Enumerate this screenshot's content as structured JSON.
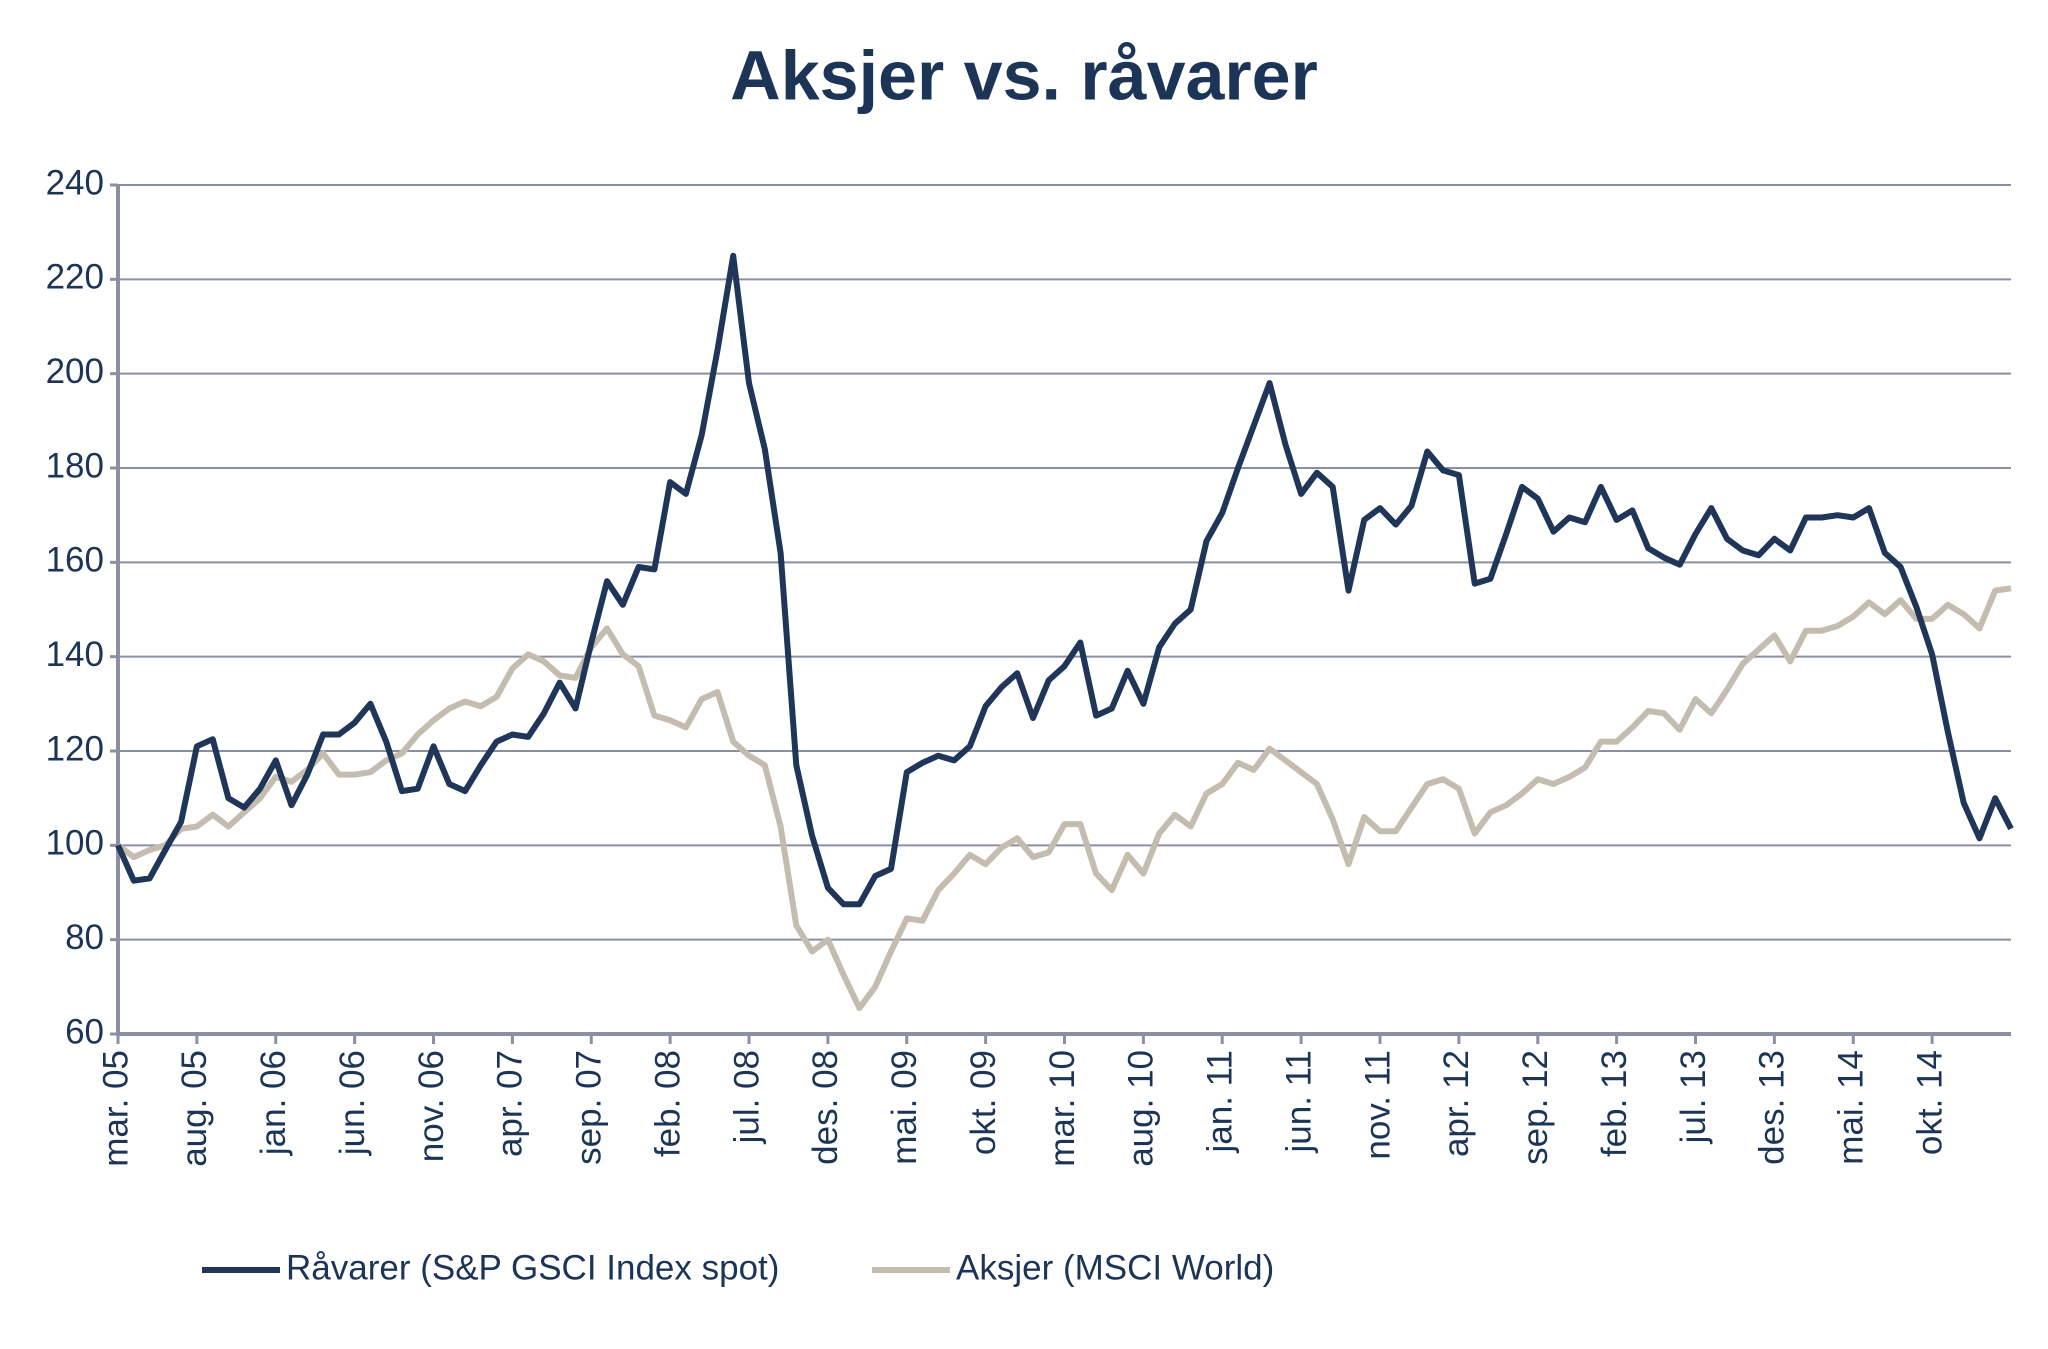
{
  "chart_data": {
    "type": "line",
    "title": "Aksjer vs. råvarer",
    "categories": [
      "mar. 05",
      null,
      null,
      null,
      null,
      "aug. 05",
      null,
      null,
      null,
      null,
      "jan. 06",
      null,
      null,
      null,
      null,
      "jun. 06",
      null,
      null,
      null,
      null,
      "nov. 06",
      null,
      null,
      null,
      null,
      "apr. 07",
      null,
      null,
      null,
      null,
      "sep. 07",
      null,
      null,
      null,
      null,
      "feb. 08",
      null,
      null,
      null,
      null,
      "jul. 08",
      null,
      null,
      null,
      null,
      "des. 08",
      null,
      null,
      null,
      null,
      "mai. 09",
      null,
      null,
      null,
      null,
      "okt. 09",
      null,
      null,
      null,
      null,
      "mar. 10",
      null,
      null,
      null,
      null,
      "aug. 10",
      null,
      null,
      null,
      null,
      "jan. 11",
      null,
      null,
      null,
      null,
      "jun. 11",
      null,
      null,
      null,
      null,
      "nov. 11",
      null,
      null,
      null,
      null,
      "apr. 12",
      null,
      null,
      null,
      null,
      "sep. 12",
      null,
      null,
      null,
      null,
      "feb. 13",
      null,
      null,
      null,
      null,
      "jul. 13",
      null,
      null,
      null,
      null,
      "des. 13",
      null,
      null,
      null,
      null,
      "mai. 14",
      null,
      null,
      null,
      null,
      "okt. 14",
      null,
      null,
      null,
      null,
      null
    ],
    "series": [
      {
        "name": "Råvarer (S&P GSCI Index spot)",
        "color": "#1f3658",
        "values": [
          100,
          92.5,
          93,
          99,
          105,
          121,
          122.5,
          110,
          108,
          112,
          118,
          108.5,
          115,
          123.5,
          123.5,
          126,
          130,
          122,
          111.5,
          112,
          121,
          113,
          111.5,
          117,
          122,
          123.5,
          123,
          128,
          134.5,
          129,
          143,
          156,
          151,
          159,
          158.5,
          177,
          174.5,
          187,
          205,
          225,
          198,
          184,
          162,
          117,
          102,
          91,
          87.5,
          87.5,
          93.5,
          95,
          115.5,
          117.5,
          119,
          118,
          121,
          129.5,
          133.5,
          136.5,
          127,
          135,
          138,
          143,
          127.5,
          129,
          137,
          130,
          142,
          147,
          150,
          164.5,
          170.5,
          180,
          189,
          198,
          185,
          174.5,
          179,
          176,
          154,
          169,
          171.5,
          168,
          172,
          183.5,
          179.5,
          178.5,
          155.5,
          156.5,
          166,
          176,
          173.5,
          166.5,
          169.5,
          168.5,
          176,
          169,
          171,
          163,
          161,
          159.5,
          166,
          171.5,
          165,
          162.5,
          161.5,
          165,
          162.5,
          169.5,
          169.5,
          170,
          169.5,
          171.5,
          162,
          159,
          150.5,
          140.5,
          124,
          109,
          101.5,
          110,
          103.5
        ]
      },
      {
        "name": "Aksjer (MSCI World)",
        "color": "#c4bcaf",
        "values": [
          100,
          97.5,
          99,
          100,
          103.5,
          104,
          106.5,
          104,
          107,
          110,
          114.5,
          113.5,
          116,
          119.5,
          115,
          115,
          115.5,
          118,
          119.5,
          123.5,
          126.5,
          129,
          130.5,
          129.5,
          131.5,
          137.5,
          140.5,
          139,
          136,
          135.5,
          142,
          146,
          140.5,
          138,
          127.5,
          126.5,
          125,
          131,
          132.5,
          122,
          119,
          117,
          104,
          83,
          77.5,
          80,
          72.5,
          65.5,
          70,
          77.5,
          84.5,
          84,
          90.5,
          94,
          98,
          96,
          99.5,
          101.5,
          97.5,
          98.5,
          104.5,
          104.5,
          94,
          90.5,
          98,
          94,
          102.5,
          106.5,
          104,
          111,
          113,
          117.5,
          116,
          120.5,
          118,
          115.5,
          113,
          105.5,
          96,
          106,
          103,
          103,
          108,
          113,
          114,
          112,
          102.5,
          107,
          108.5,
          111,
          114,
          113,
          114.5,
          116.5,
          122,
          122,
          125,
          128.5,
          128,
          124.5,
          131,
          128,
          133,
          138.5,
          141.5,
          144.5,
          139,
          145.5,
          145.5,
          146.5,
          148.5,
          151.5,
          149,
          152,
          148,
          148,
          151,
          149,
          146,
          154,
          154.5
        ]
      }
    ],
    "ylim": [
      60,
      240
    ],
    "yticks": [
      60,
      80,
      100,
      120,
      140,
      160,
      180,
      200,
      220,
      240
    ],
    "grid": true,
    "legend": "bottom"
  }
}
